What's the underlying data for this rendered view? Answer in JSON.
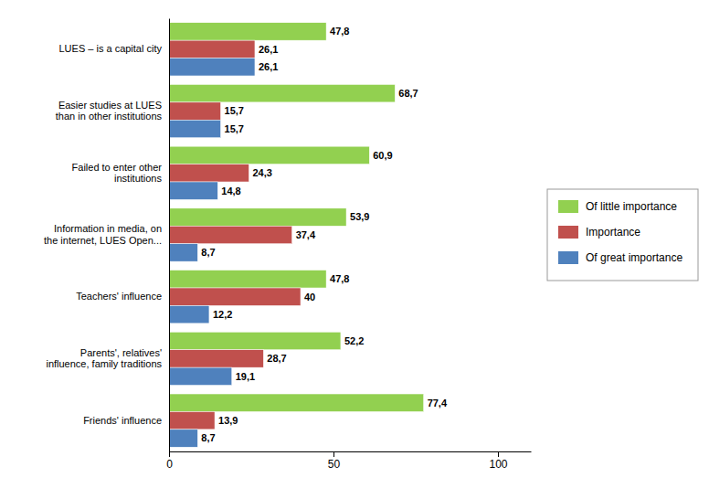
{
  "chart_data": {
    "type": "bar",
    "orientation": "horizontal",
    "categories": [
      "Friends' influence",
      "Parents', relatives'\ninfluence, family traditions",
      "Teachers' influence",
      "Information in media, on\nthe internet, LUES Open...",
      "Failed to enter other\ninstitutions",
      "Easier studies at LUES\nthan in other institutions",
      "LUES – is a capital city"
    ],
    "series": [
      {
        "name": "Of little importance",
        "color": "#92d050",
        "values": [
          77.4,
          52.2,
          47.8,
          53.9,
          60.9,
          68.7,
          47.8
        ],
        "value_labels": [
          "77,4",
          "52,2",
          "47,8",
          "53,9",
          "60,9",
          "68,7",
          "47,8"
        ]
      },
      {
        "name": "Importance",
        "color": "#c0504d",
        "values": [
          13.9,
          28.7,
          40.0,
          37.4,
          24.3,
          15.7,
          26.1
        ],
        "value_labels": [
          "13,9",
          "28,7",
          "40",
          "37,4",
          "24,3",
          "15,7",
          "26,1"
        ]
      },
      {
        "name": "Of great importance",
        "color": "#4f81bd",
        "values": [
          8.7,
          19.1,
          12.2,
          8.7,
          14.8,
          15.7,
          26.1
        ],
        "value_labels": [
          "8,7",
          "19,1",
          "12,2",
          "8,7",
          "14,8",
          "15,7",
          "26,1"
        ]
      }
    ],
    "xlim": [
      0,
      110
    ],
    "xticks": [
      0,
      50,
      100
    ],
    "data_labels": true,
    "grid": false,
    "legend": "right"
  }
}
